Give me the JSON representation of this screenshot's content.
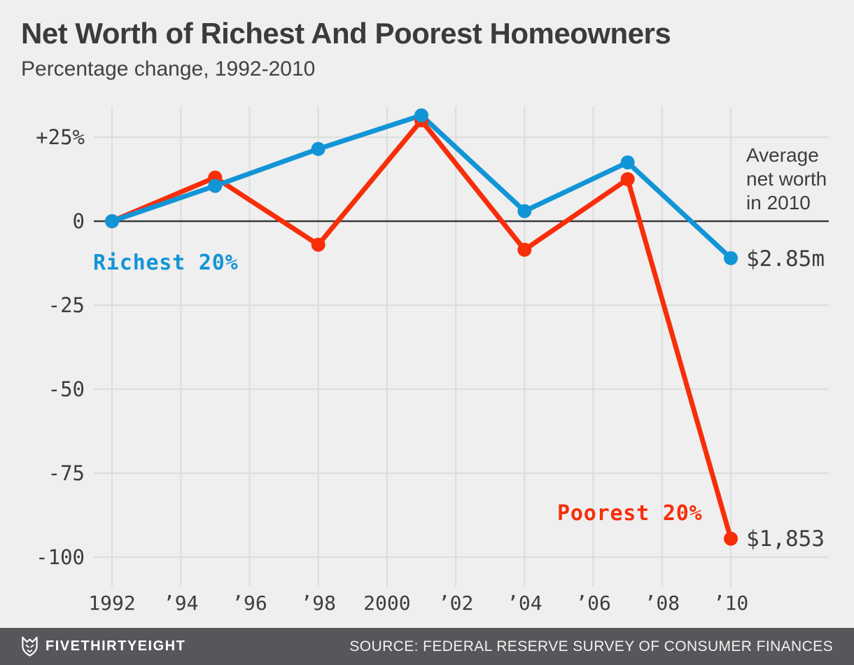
{
  "header": {
    "title": "Net Worth of Richest And Poorest Homeowners",
    "subtitle": "Percentage change, 1992-2010"
  },
  "chart_data": {
    "type": "line",
    "title": "Net Worth of Richest And Poorest Homeowners",
    "subtitle": "Percentage change, 1992-2010",
    "x": [
      1992,
      1995,
      1998,
      2001,
      2004,
      2007,
      2010
    ],
    "series": [
      {
        "name": "Richest 20%",
        "color": "#1295d6",
        "values": [
          0,
          10.5,
          21.5,
          31.5,
          3,
          17.5,
          -11
        ]
      },
      {
        "name": "Poorest 20%",
        "color": "#f72e0a",
        "values": [
          0,
          13,
          -7,
          30,
          -8.5,
          12.5,
          -94.5
        ]
      }
    ],
    "x_ticks": [
      {
        "year": 1992,
        "label": "1992"
      },
      {
        "year": 1994,
        "label": "’94"
      },
      {
        "year": 1996,
        "label": "’96"
      },
      {
        "year": 1998,
        "label": "’98"
      },
      {
        "year": 2000,
        "label": "2000"
      },
      {
        "year": 2002,
        "label": "’02"
      },
      {
        "year": 2004,
        "label": "’04"
      },
      {
        "year": 2006,
        "label": "’06"
      },
      {
        "year": 2008,
        "label": "’08"
      },
      {
        "year": 2010,
        "label": "’10"
      }
    ],
    "y_ticks": [
      {
        "value": 25,
        "label": "+25%"
      },
      {
        "value": 0,
        "label": "0"
      },
      {
        "value": -25,
        "label": "-25"
      },
      {
        "value": -50,
        "label": "-50"
      },
      {
        "value": -75,
        "label": "-75"
      },
      {
        "value": -100,
        "label": "-100"
      }
    ],
    "ylim": [
      -107,
      35
    ],
    "xlabel": "",
    "ylabel": "Percentage change",
    "grid": true,
    "legend_position": "inline-annotations",
    "annotations": {
      "richest_label": "Richest 20%",
      "poorest_label": "Poorest 20%",
      "avg_note": "Average net worth in 2010",
      "richest_value": "$2.85m",
      "poorest_value": "$1,853"
    }
  },
  "colors": {
    "richest": "#1295d6",
    "poorest": "#f72e0a",
    "grid": "#dcdcdc",
    "zero_line": "#3a3a3a",
    "text_dark": "#3d3d3d",
    "background": "#efefef",
    "footer_bg": "#56575a"
  },
  "footer": {
    "brand": "FIVETHIRTYEIGHT",
    "source": "SOURCE: FEDERAL RESERVE SURVEY OF CONSUMER FINANCES"
  }
}
